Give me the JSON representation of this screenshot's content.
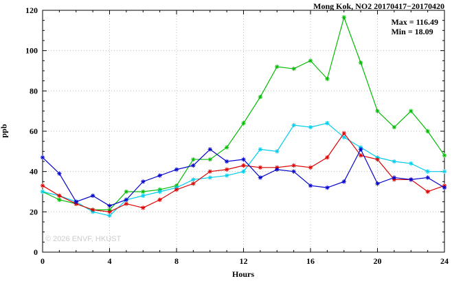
{
  "header": {
    "title": "Mong Kok, NO2 20170417−20170420"
  },
  "annotations": {
    "max_label": "Max = 116.49",
    "min_label": "Min = 18.09"
  },
  "watermark": "© 2026 ENVF, HKUST",
  "chart_data": {
    "type": "line",
    "title": "Mong Kok, NO2 20170417−20170420",
    "xlabel": "Hours",
    "ylabel": "ppb",
    "xlim": [
      0,
      24
    ],
    "ylim": [
      0,
      120
    ],
    "xticks": [
      0,
      4,
      8,
      12,
      16,
      20,
      24
    ],
    "yticks": [
      0,
      20,
      40,
      60,
      80,
      100,
      120
    ],
    "x_minor_step": 1,
    "y_minor_step": 5,
    "grid": true,
    "legend": "none",
    "max": 116.49,
    "min": 18.09,
    "x": [
      0,
      1,
      2,
      3,
      4,
      5,
      6,
      7,
      8,
      9,
      10,
      11,
      12,
      13,
      14,
      15,
      16,
      17,
      18,
      19,
      20,
      21,
      22,
      23,
      24
    ],
    "series": [
      {
        "name": "green-series",
        "color": "#00bb00",
        "values": [
          30,
          26,
          24,
          21,
          21,
          30,
          30,
          31,
          33,
          46,
          46,
          52,
          64,
          77,
          92,
          91,
          95,
          86,
          116.49,
          94,
          70,
          62,
          70,
          60,
          48
        ]
      },
      {
        "name": "cyan-series",
        "color": "#00ccee",
        "values": [
          30,
          28,
          25,
          20,
          18.09,
          26,
          28,
          30,
          32,
          36,
          37,
          38,
          40,
          51,
          50,
          63,
          62,
          64,
          57,
          52,
          47,
          45,
          44,
          40,
          40
        ]
      },
      {
        "name": "red-series",
        "color": "#dd0000",
        "values": [
          33,
          28,
          24,
          21,
          20,
          24,
          22,
          26,
          31,
          34,
          40,
          41,
          43,
          42,
          42,
          43,
          42,
          47,
          59,
          48,
          46,
          36,
          36,
          30,
          33
        ]
      },
      {
        "name": "blue-series",
        "color": "#0000cc",
        "values": [
          47,
          39,
          25,
          28,
          23,
          26,
          35,
          38,
          41,
          43,
          51,
          45,
          46,
          37,
          41,
          40,
          33,
          32,
          35,
          51,
          34,
          37,
          36,
          37,
          32
        ]
      }
    ]
  }
}
